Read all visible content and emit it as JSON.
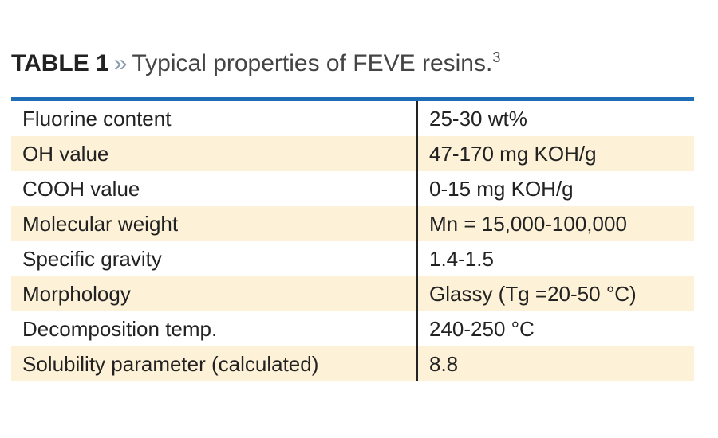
{
  "header": {
    "label": "TABLE 1",
    "separator": "»",
    "title": "Typical properties of FEVE resins.",
    "footnote": "3"
  },
  "table": {
    "rows": [
      [
        "Fluorine content",
        "25-30 wt%"
      ],
      [
        "OH value",
        "47-170 mg KOH/g"
      ],
      [
        "COOH value",
        "0-15 mg KOH/g"
      ],
      [
        "Molecular weight",
        "Mn = 15,000-100,000"
      ],
      [
        "Specific gravity",
        "1.4-1.5"
      ],
      [
        "Morphology",
        "Glassy (Tg =20-50 °C)"
      ],
      [
        "Decomposition temp.",
        "240-250 °C"
      ],
      [
        "Solubility parameter (calculated)",
        "8.8"
      ]
    ]
  }
}
